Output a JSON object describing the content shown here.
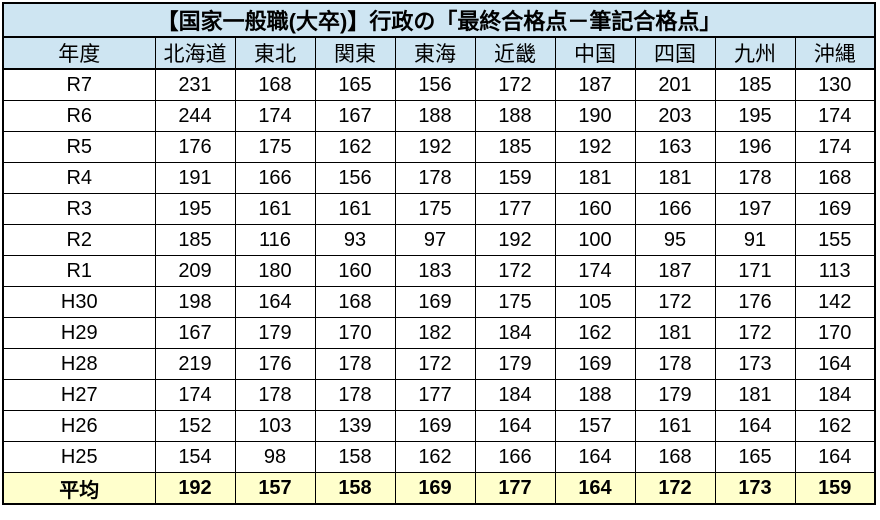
{
  "table": {
    "title": "【国家一般職(大卒)】行政の「最終合格点－筆記合格点」",
    "columns": [
      "年度",
      "北海道",
      "東北",
      "関東",
      "東海",
      "近畿",
      "中国",
      "四国",
      "九州",
      "沖縄"
    ],
    "rows": [
      {
        "year": "R7",
        "values": [
          231,
          168,
          165,
          156,
          172,
          187,
          201,
          185,
          130
        ]
      },
      {
        "year": "R6",
        "values": [
          244,
          174,
          167,
          188,
          188,
          190,
          203,
          195,
          174
        ]
      },
      {
        "year": "R5",
        "values": [
          176,
          175,
          162,
          192,
          185,
          192,
          163,
          196,
          174
        ]
      },
      {
        "year": "R4",
        "values": [
          191,
          166,
          156,
          178,
          159,
          181,
          181,
          178,
          168
        ]
      },
      {
        "year": "R3",
        "values": [
          195,
          161,
          161,
          175,
          177,
          160,
          166,
          197,
          169
        ]
      },
      {
        "year": "R2",
        "values": [
          185,
          116,
          93,
          97,
          192,
          100,
          95,
          91,
          155
        ]
      },
      {
        "year": "R1",
        "values": [
          209,
          180,
          160,
          183,
          172,
          174,
          187,
          171,
          113
        ]
      },
      {
        "year": "H30",
        "values": [
          198,
          164,
          168,
          169,
          175,
          105,
          172,
          176,
          142
        ]
      },
      {
        "year": "H29",
        "values": [
          167,
          179,
          170,
          182,
          184,
          162,
          181,
          172,
          170
        ]
      },
      {
        "year": "H28",
        "values": [
          219,
          176,
          178,
          172,
          179,
          169,
          178,
          173,
          164
        ]
      },
      {
        "year": "H27",
        "values": [
          174,
          178,
          178,
          177,
          184,
          188,
          179,
          181,
          184
        ]
      },
      {
        "year": "H26",
        "values": [
          152,
          103,
          139,
          169,
          164,
          157,
          161,
          164,
          162
        ]
      },
      {
        "year": "H25",
        "values": [
          154,
          98,
          158,
          162,
          166,
          164,
          168,
          165,
          164
        ]
      }
    ],
    "average": {
      "label": "平均",
      "values": [
        192,
        157,
        158,
        169,
        177,
        164,
        172,
        173,
        159
      ]
    }
  },
  "chart_data": {
    "type": "table",
    "title": "【国家一般職(大卒)】行政の「最終合格点－筆記合格点」",
    "categories": [
      "北海道",
      "東北",
      "関東",
      "東海",
      "近畿",
      "中国",
      "四国",
      "九州",
      "沖縄"
    ],
    "series": [
      {
        "name": "R7",
        "values": [
          231,
          168,
          165,
          156,
          172,
          187,
          201,
          185,
          130
        ]
      },
      {
        "name": "R6",
        "values": [
          244,
          174,
          167,
          188,
          188,
          190,
          203,
          195,
          174
        ]
      },
      {
        "name": "R5",
        "values": [
          176,
          175,
          162,
          192,
          185,
          192,
          163,
          196,
          174
        ]
      },
      {
        "name": "R4",
        "values": [
          191,
          166,
          156,
          178,
          159,
          181,
          181,
          178,
          168
        ]
      },
      {
        "name": "R3",
        "values": [
          195,
          161,
          161,
          175,
          177,
          160,
          166,
          197,
          169
        ]
      },
      {
        "name": "R2",
        "values": [
          185,
          116,
          93,
          97,
          192,
          100,
          95,
          91,
          155
        ]
      },
      {
        "name": "R1",
        "values": [
          209,
          180,
          160,
          183,
          172,
          174,
          187,
          171,
          113
        ]
      },
      {
        "name": "H30",
        "values": [
          198,
          164,
          168,
          169,
          175,
          105,
          172,
          176,
          142
        ]
      },
      {
        "name": "H29",
        "values": [
          167,
          179,
          170,
          182,
          184,
          162,
          181,
          172,
          170
        ]
      },
      {
        "name": "H28",
        "values": [
          219,
          176,
          178,
          172,
          179,
          169,
          178,
          173,
          164
        ]
      },
      {
        "name": "H27",
        "values": [
          174,
          178,
          178,
          177,
          184,
          188,
          179,
          181,
          184
        ]
      },
      {
        "name": "H26",
        "values": [
          152,
          103,
          139,
          169,
          164,
          157,
          161,
          164,
          162
        ]
      },
      {
        "name": "H25",
        "values": [
          154,
          98,
          158,
          162,
          166,
          164,
          168,
          165,
          164
        ]
      },
      {
        "name": "平均",
        "values": [
          192,
          157,
          158,
          169,
          177,
          164,
          172,
          173,
          159
        ]
      }
    ]
  },
  "colors": {
    "header_bg": "#CEE5F2",
    "average_bg": "#FFFFCC",
    "border": "#000000",
    "text": "#000000",
    "page_bg": "#FFFFFF"
  }
}
